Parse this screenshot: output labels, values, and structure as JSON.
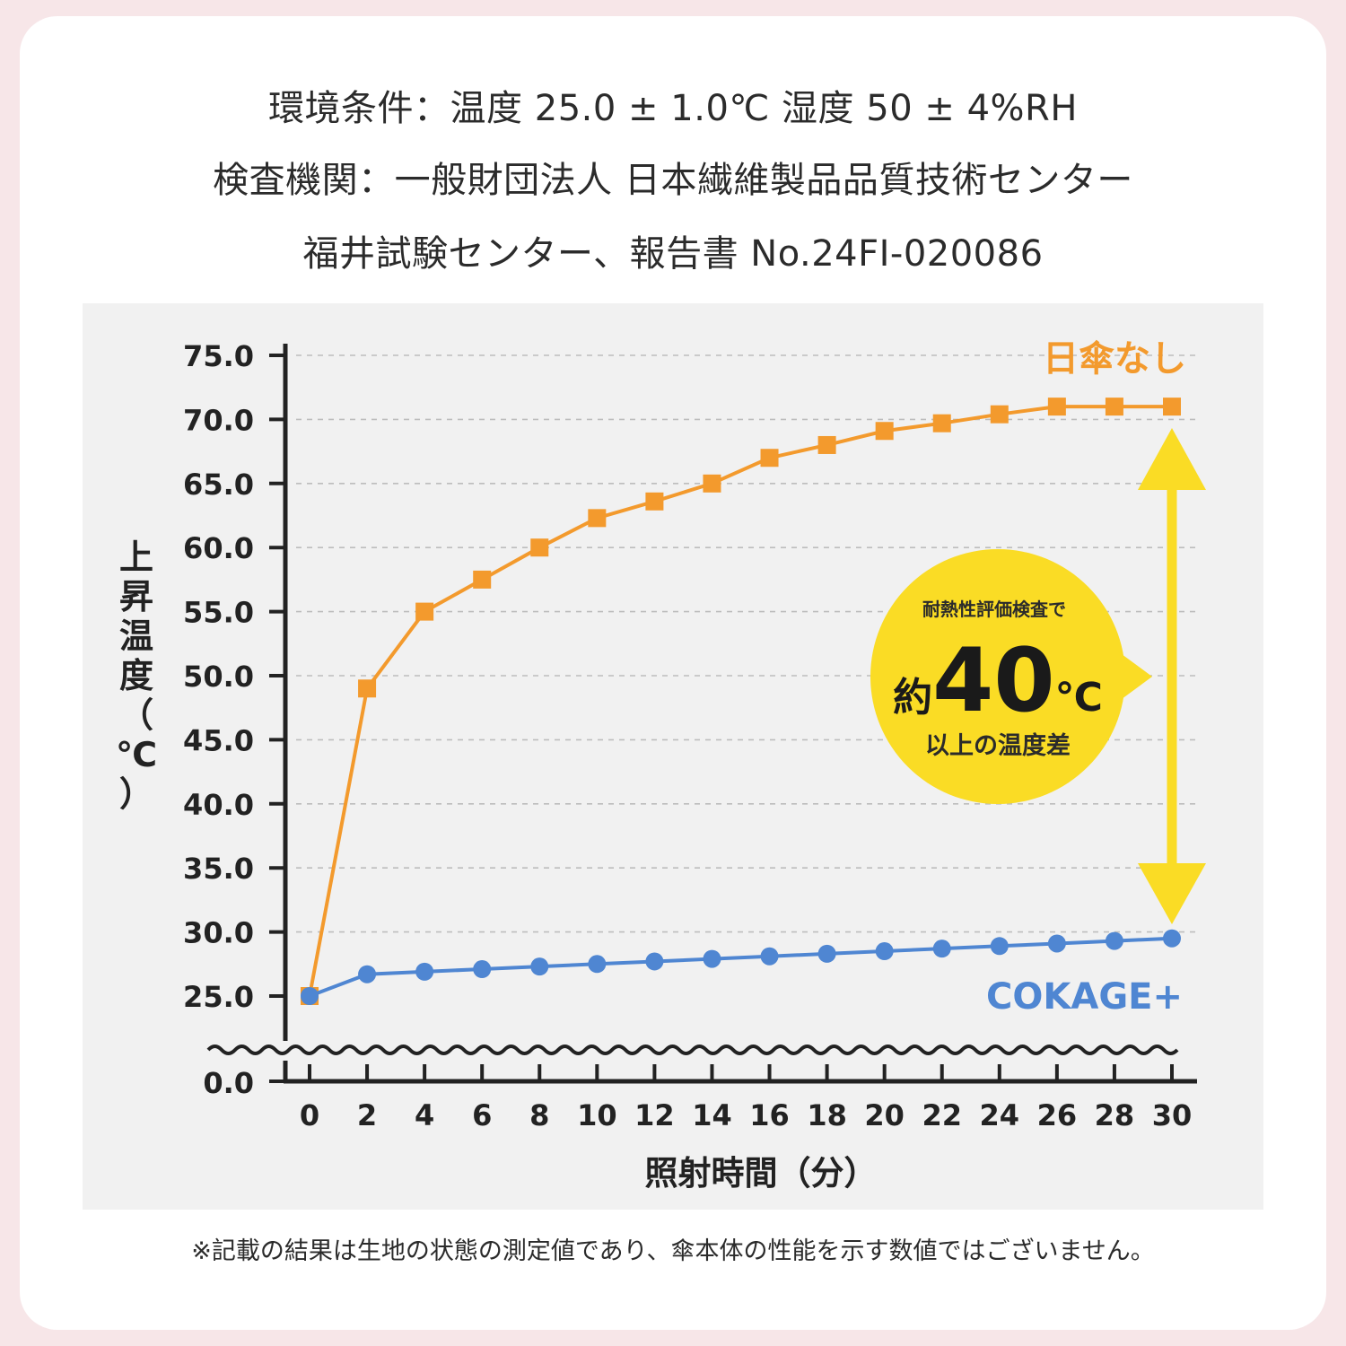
{
  "header": {
    "line1": "環境条件：温度 25.0 ± 1.0℃ 湿度 50 ± 4%RH",
    "line2": "検査機関：一般財団法人 日本繊維製品品質技術センター",
    "line3": "福井試験センター、報告書 No.24FI-020086"
  },
  "footnote": "※記載の結果は生地の状態の測定値であり、傘本体の性能を示す数値ではございません。",
  "callout": {
    "top": "耐熱性評価検査で",
    "prefix": "約",
    "value": "40",
    "unit": "℃",
    "bottom": "以上の温度差"
  },
  "colors": {
    "orange": "#f39a2d",
    "blue": "#4f86d2",
    "yellow": "#fadc25",
    "axis": "#222222",
    "grid": "#bdbdbd"
  },
  "chart_data": {
    "type": "line",
    "xlabel": "照射時間（分）",
    "ylabel": "上昇温度（℃）",
    "x": [
      0,
      2,
      4,
      6,
      8,
      10,
      12,
      14,
      16,
      18,
      20,
      22,
      24,
      26,
      28,
      30
    ],
    "x_ticks": [
      "0",
      "2",
      "4",
      "6",
      "8",
      "10",
      "12",
      "14",
      "16",
      "18",
      "20",
      "22",
      "24",
      "26",
      "28",
      "30"
    ],
    "y_ticks": [
      "25.0",
      "30.0",
      "35.0",
      "40.0",
      "45.0",
      "50.0",
      "55.0",
      "60.0",
      "65.0",
      "70.0",
      "75.0"
    ],
    "y_break_tick": "0.0",
    "ylim": [
      25,
      75
    ],
    "grid": "horizontal-dashed",
    "series": [
      {
        "name": "日傘なし",
        "color": "#f39a2d",
        "marker": "square",
        "values": [
          25.0,
          49.0,
          55.0,
          57.5,
          60.0,
          62.3,
          63.6,
          65.0,
          67.0,
          68.0,
          69.1,
          69.7,
          70.4,
          71.0,
          71.0,
          71.0
        ]
      },
      {
        "name": "COKAGE+",
        "color": "#4f86d2",
        "marker": "circle",
        "values": [
          25.0,
          26.7,
          26.9,
          27.1,
          27.3,
          27.5,
          27.7,
          27.9,
          28.1,
          28.3,
          28.5,
          28.7,
          28.9,
          29.1,
          29.3,
          29.5
        ]
      }
    ]
  }
}
